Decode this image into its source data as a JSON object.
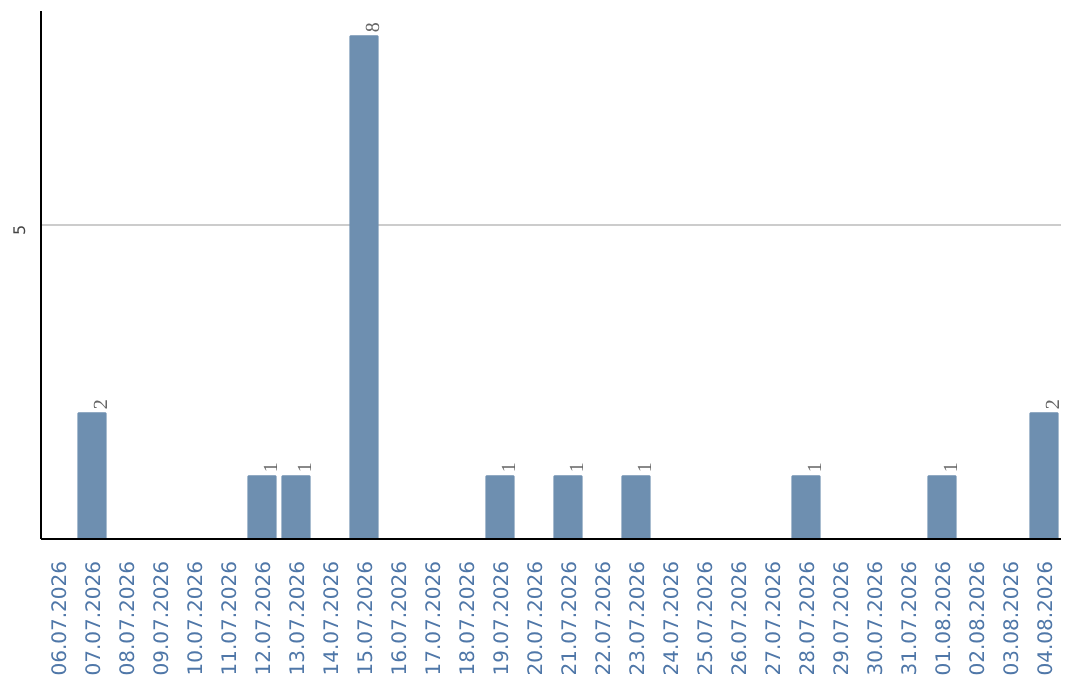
{
  "chart_data": {
    "type": "bar",
    "categories": [
      "06.07.2026",
      "07.07.2026",
      "08.07.2026",
      "09.07.2026",
      "10.07.2026",
      "11.07.2026",
      "12.07.2026",
      "13.07.2026",
      "14.07.2026",
      "15.07.2026",
      "16.07.2026",
      "17.07.2026",
      "18.07.2026",
      "19.07.2026",
      "20.07.2026",
      "21.07.2026",
      "22.07.2026",
      "23.07.2026",
      "24.07.2026",
      "25.07.2026",
      "26.07.2026",
      "27.07.2026",
      "28.07.2026",
      "29.07.2026",
      "30.07.2026",
      "31.07.2026",
      "01.08.2026",
      "02.08.2026",
      "03.08.2026",
      "04.08.2026"
    ],
    "values": [
      0,
      2,
      0,
      0,
      0,
      0,
      1,
      1,
      0,
      8,
      0,
      0,
      0,
      1,
      0,
      1,
      0,
      1,
      0,
      0,
      0,
      0,
      1,
      0,
      0,
      0,
      1,
      0,
      0,
      2
    ],
    "value_labels": [
      null,
      "2",
      null,
      null,
      null,
      null,
      "1",
      "1",
      null,
      "8",
      null,
      null,
      null,
      "1",
      null,
      "1",
      null,
      "1",
      null,
      null,
      null,
      null,
      "1",
      null,
      null,
      null,
      "1",
      null,
      null,
      "2"
    ],
    "color": "#6e8fb0",
    "ylim": [
      0,
      8.4
    ],
    "yticks": [
      5
    ],
    "grid": "y"
  }
}
